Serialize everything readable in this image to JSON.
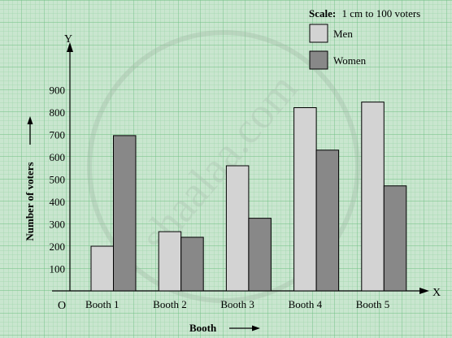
{
  "chart_data": {
    "type": "bar",
    "scale_label": "Scale:",
    "scale_text": "1 cm to 100 voters",
    "xlabel": "Booth",
    "ylabel": "Number of voters",
    "x_axis_letter": "X",
    "y_axis_letter": "Y",
    "origin_label": "O",
    "categories": [
      "Booth 1",
      "Booth 2",
      "Booth 3",
      "Booth 4",
      "Booth 5"
    ],
    "y_ticks": [
      "100",
      "200",
      "300",
      "400",
      "500",
      "600",
      "700",
      "800",
      "900"
    ],
    "ylim": [
      0,
      900
    ],
    "legend_position": "top-right",
    "grid": true,
    "series": [
      {
        "name": "Men",
        "values": [
          200,
          265,
          560,
          820,
          845
        ],
        "color": "#d3d3d3"
      },
      {
        "name": "Women",
        "values": [
          695,
          240,
          325,
          630,
          470
        ],
        "color": "#888888"
      }
    ],
    "watermark": "shaalaa.com"
  }
}
